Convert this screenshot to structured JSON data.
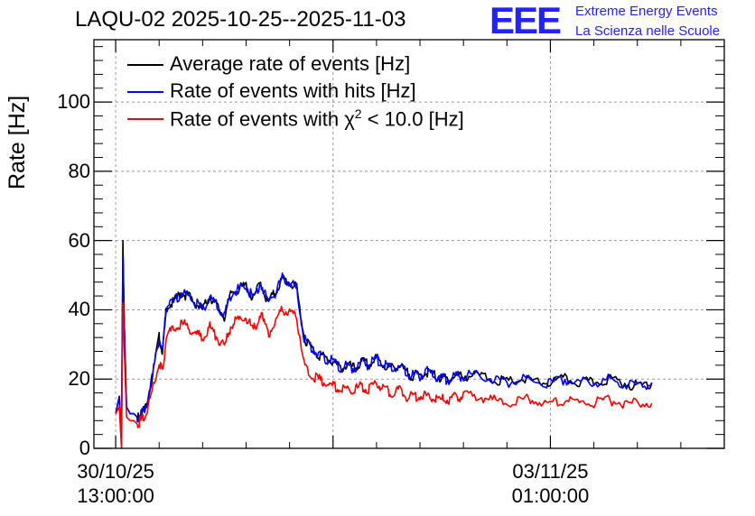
{
  "header": {
    "title": "LAQU-02 2025-10-25--2025-11-03"
  },
  "brand": {
    "logo": "EEE",
    "line1": "Extreme Energy Events",
    "line2": "La Scienza nelle Scuole",
    "color": "#2222ff"
  },
  "chart_data": {
    "type": "line",
    "title": "LAQU-02 2025-10-25--2025-11-03",
    "ylabel": "Rate [Hz]",
    "xlabel": "",
    "ylim": [
      0,
      118
    ],
    "yticks": [
      {
        "value": 0,
        "label": "0"
      },
      {
        "value": 20,
        "label": "20"
      },
      {
        "value": 40,
        "label": "40"
      },
      {
        "value": 60,
        "label": "60"
      },
      {
        "value": 80,
        "label": "80"
      },
      {
        "value": 100,
        "label": "100"
      }
    ],
    "xlim_hours": [
      -3,
      84
    ],
    "xticks": [
      {
        "hours": 0,
        "date": "30/10/25",
        "time": "13:00:00"
      },
      {
        "hours": 60,
        "date": "03/11/25",
        "time": "01:00:00"
      }
    ],
    "grid": true,
    "legend_position": "top-left",
    "x_hours": [
      0,
      0.5,
      0.8,
      1,
      1.2,
      1.5,
      2,
      2.5,
      3,
      3.5,
      4,
      5,
      6,
      6.5,
      7,
      8,
      9,
      10,
      11,
      12,
      13,
      14,
      15,
      16,
      17,
      18,
      19,
      20,
      21,
      22,
      23,
      24,
      25,
      26,
      27,
      28,
      29,
      30,
      31,
      32,
      33,
      34,
      35,
      36,
      37,
      38,
      39,
      40,
      41,
      42,
      43,
      44,
      45,
      46,
      47,
      48,
      50,
      52,
      54,
      56,
      58,
      60,
      62,
      64,
      66,
      68,
      70,
      72,
      74
    ],
    "series": [
      {
        "name": "Average rate of events",
        "label_prefix": "Average rate of events [Hz]",
        "color": "#000000",
        "values": [
          10,
          15,
          3,
          60,
          35,
          12,
          10,
          10,
          9,
          10,
          11,
          20,
          32,
          28,
          41,
          42,
          45,
          44,
          42,
          40,
          44,
          41,
          38,
          45,
          46,
          47,
          43,
          48,
          42,
          45,
          49,
          48,
          46,
          32,
          29,
          27,
          26,
          25,
          23,
          24,
          23,
          25,
          24,
          26,
          24,
          23,
          24,
          22,
          21,
          21,
          22,
          21,
          20,
          20,
          21,
          21,
          21,
          20,
          19,
          20,
          19,
          19,
          20,
          19,
          19,
          20,
          19,
          18,
          19
        ]
      },
      {
        "name": "Rate of events with hits",
        "label_prefix": "Rate of events with hits [Hz]",
        "color": "#0000ff",
        "values": [
          10,
          15,
          3,
          55,
          35,
          12,
          10,
          10,
          9,
          10,
          11,
          20,
          32,
          28,
          41,
          42,
          45,
          44,
          42,
          40,
          44,
          41,
          38,
          45,
          46,
          47,
          43,
          48,
          42,
          45,
          49,
          48,
          46,
          32,
          29,
          27,
          26,
          25,
          23,
          24,
          23,
          25,
          24,
          26,
          24,
          23,
          24,
          22,
          21,
          21,
          22,
          21,
          20,
          20,
          21,
          21,
          21,
          20,
          19,
          20,
          19,
          19,
          20,
          19,
          19,
          20,
          19,
          18,
          19
        ]
      },
      {
        "name": "Rate of events with chi2 < 10.0",
        "label_prefix": "Rate of events with ",
        "label_symbol": "χ",
        "label_sup": "2",
        "label_suffix": " < 10.0 [Hz]",
        "color": "#ff0000",
        "values": [
          10,
          12,
          0,
          42,
          28,
          9,
          8,
          8,
          7,
          8,
          9,
          16,
          25,
          22,
          33,
          34,
          36,
          35,
          33,
          32,
          35,
          32,
          29,
          36,
          37,
          38,
          34,
          39,
          33,
          36,
          40,
          39,
          38,
          24,
          21,
          20,
          19,
          18,
          17,
          17,
          17,
          18,
          17,
          19,
          17,
          16,
          17,
          15,
          15,
          15,
          15,
          15,
          14,
          14,
          15,
          15,
          15,
          14,
          13,
          14,
          14,
          13,
          14,
          13,
          13,
          14,
          13,
          13,
          13
        ]
      }
    ]
  }
}
